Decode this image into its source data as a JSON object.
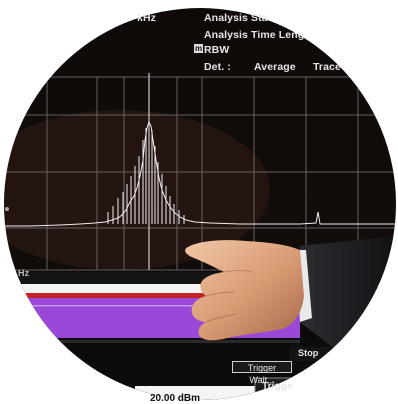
{
  "top_left_label": "kHz",
  "analysis": {
    "start_label": "Analysis Sta",
    "time_length_label": "Analysis Time Leng",
    "rbw_label": "RBW"
  },
  "detector": {
    "label": "Det. :",
    "mode": "Average",
    "trace_label": "Trace"
  },
  "left_axis_label": "Hz",
  "control": {
    "stop_label": "Stop",
    "trigger_wait_label": "Trigger Wait...",
    "trigger_label": "Trigge",
    "level_value": "20.00 dBm"
  }
}
